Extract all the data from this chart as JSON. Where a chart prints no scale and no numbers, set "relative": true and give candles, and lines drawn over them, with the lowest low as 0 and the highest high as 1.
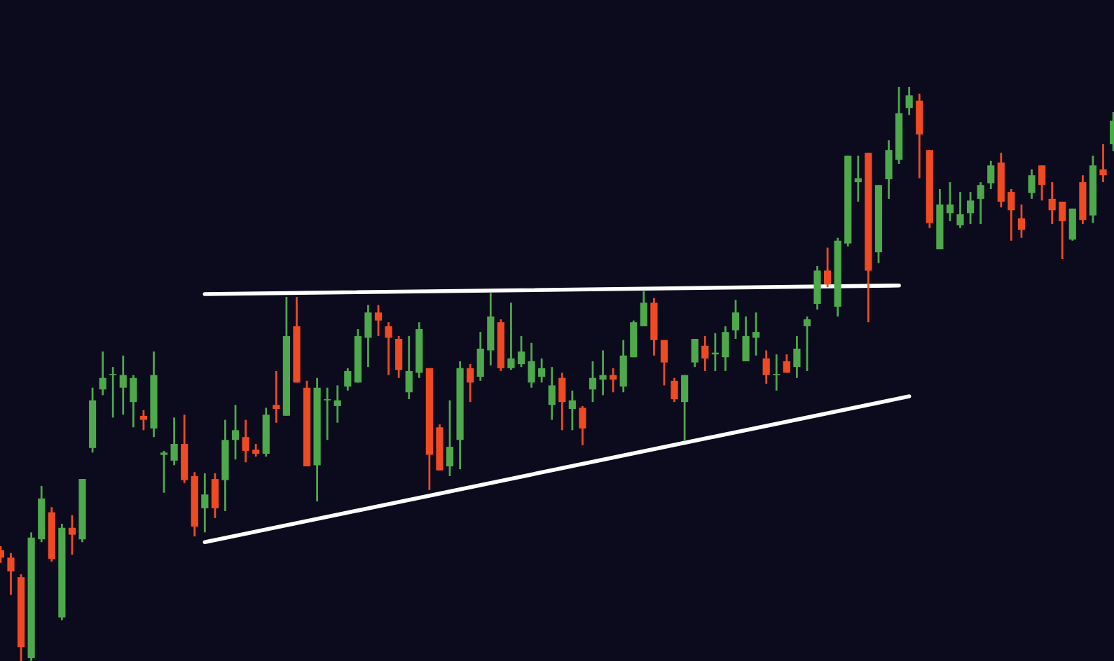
{
  "chart_data": {
    "type": "candlestick",
    "relative": true,
    "categories": [
      null,
      null,
      null,
      null,
      null,
      null,
      null,
      null,
      null,
      null,
      null,
      null,
      null,
      null,
      null,
      null,
      null,
      null,
      null,
      null,
      null,
      null,
      null,
      null,
      null,
      null,
      null,
      null,
      null,
      null,
      null,
      null,
      null,
      null,
      null,
      null,
      null,
      null,
      null,
      null,
      null,
      null,
      null,
      null,
      null,
      null,
      null,
      null,
      null,
      null,
      null,
      null,
      null,
      null,
      null,
      null,
      null,
      null,
      null,
      null,
      null,
      null,
      null,
      null,
      null,
      null,
      null,
      null,
      null,
      null,
      null,
      null,
      null,
      null,
      null,
      null,
      null,
      null,
      null,
      null,
      null,
      null,
      null,
      null,
      null,
      null,
      null,
      null,
      null,
      null,
      null,
      null,
      null,
      null,
      null,
      null,
      null,
      null,
      null,
      null,
      null,
      null,
      null,
      null,
      null,
      null,
      null,
      null,
      null,
      null
    ],
    "ohlc": [
      [
        0.193,
        0.2,
        0.171,
        0.18
      ],
      [
        0.18,
        0.188,
        0.115,
        0.156
      ],
      [
        0.146,
        0.151,
        0,
        0.024
      ],
      [
        0.005,
        0.224,
        0,
        0.215
      ],
      [
        0.212,
        0.305,
        0.207,
        0.283
      ],
      [
        0.259,
        0.268,
        0.173,
        0.178
      ],
      [
        0.076,
        0.239,
        0.071,
        0.232
      ],
      [
        0.232,
        0.254,
        0.185,
        0.22
      ],
      [
        0.212,
        0.317,
        0.207,
        0.317
      ],
      [
        0.371,
        0.476,
        0.363,
        0.454
      ],
      [
        0.473,
        0.539,
        0.463,
        0.493
      ],
      [
        0.498,
        0.512,
        0.424,
        0.5
      ],
      [
        0.476,
        0.532,
        0.429,
        0.498
      ],
      [
        0.451,
        0.498,
        0.407,
        0.493
      ],
      [
        0.427,
        0.437,
        0.402,
        0.42
      ],
      [
        0.405,
        0.539,
        0.39,
        0.498
      ],
      [
        0.359,
        0.366,
        0.293,
        0.363
      ],
      [
        0.349,
        0.424,
        0.341,
        0.378
      ],
      [
        0.378,
        0.429,
        0.31,
        0.315
      ],
      [
        0.322,
        0.329,
        0.217,
        0.234
      ],
      [
        0.266,
        0.327,
        0.224,
        0.29
      ],
      [
        0.317,
        0.327,
        0.249,
        0.266
      ],
      [
        0.315,
        0.42,
        0.261,
        0.385
      ],
      [
        0.385,
        0.446,
        0.351,
        0.402
      ],
      [
        0.39,
        0.42,
        0.346,
        0.366
      ],
      [
        0.368,
        0.378,
        0.356,
        0.361
      ],
      [
        0.361,
        0.441,
        0.356,
        0.429
      ],
      [
        0.446,
        0.505,
        0.415,
        0.439
      ],
      [
        0.427,
        0.634,
        0.427,
        0.566
      ],
      [
        0.583,
        0.634,
        0.485,
        0.485
      ],
      [
        0.476,
        0.488,
        0.339,
        0.339
      ],
      [
        0.341,
        0.493,
        0.278,
        0.476
      ],
      [
        0.454,
        0.476,
        0.385,
        0.456
      ],
      [
        0.444,
        0.48,
        0.415,
        0.454
      ],
      [
        0.478,
        0.51,
        0.471,
        0.505
      ],
      [
        0.485,
        0.578,
        0.485,
        0.566
      ],
      [
        0.563,
        0.62,
        0.512,
        0.607
      ],
      [
        0.607,
        0.62,
        0.566,
        0.593
      ],
      [
        0.583,
        0.59,
        0.498,
        0.563
      ],
      [
        0.561,
        0.566,
        0.493,
        0.507
      ],
      [
        0.468,
        0.566,
        0.456,
        0.505
      ],
      [
        0.502,
        0.59,
        0.493,
        0.578
      ],
      [
        0.51,
        0.51,
        0.298,
        0.359
      ],
      [
        0.407,
        0.412,
        0.332,
        0.332
      ],
      [
        0.339,
        0.454,
        0.322,
        0.373
      ],
      [
        0.385,
        0.522,
        0.334,
        0.51
      ],
      [
        0.51,
        0.517,
        0.451,
        0.485
      ],
      [
        0.495,
        0.573,
        0.488,
        0.544
      ],
      [
        0.541,
        0.641,
        0.515,
        0.6
      ],
      [
        0.59,
        0.595,
        0.505,
        0.51
      ],
      [
        0.51,
        0.624,
        0.507,
        0.527
      ],
      [
        0.517,
        0.566,
        0.512,
        0.539
      ],
      [
        0.485,
        0.554,
        0.476,
        0.522
      ],
      [
        0.495,
        0.527,
        0.485,
        0.51
      ],
      [
        0.446,
        0.512,
        0.42,
        0.48
      ],
      [
        0.493,
        0.502,
        0.402,
        0.451
      ],
      [
        0.439,
        0.471,
        0.402,
        0.454
      ],
      [
        0.441,
        0.444,
        0.376,
        0.405
      ],
      [
        0.473,
        0.522,
        0.451,
        0.493
      ],
      [
        0.49,
        0.541,
        0.463,
        0.498
      ],
      [
        0.498,
        0.51,
        0.468,
        0.49
      ],
      [
        0.478,
        0.559,
        0.468,
        0.532
      ],
      [
        0.529,
        0.593,
        0.529,
        0.59
      ],
      [
        0.583,
        0.644,
        0.583,
        0.624
      ],
      [
        0.624,
        0.632,
        0.532,
        0.559
      ],
      [
        0.559,
        0.559,
        0.48,
        0.52
      ],
      [
        0.488,
        0.493,
        0.451,
        0.456
      ],
      [
        0.451,
        0.498,
        0.383,
        0.498
      ],
      [
        0.52,
        0.561,
        0.512,
        0.561
      ],
      [
        0.549,
        0.566,
        0.505,
        0.527
      ],
      [
        0.534,
        0.571,
        0.505,
        0.537
      ],
      [
        0.529,
        0.583,
        0.505,
        0.573
      ],
      [
        0.576,
        0.629,
        0.561,
        0.607
      ],
      [
        0.522,
        0.6,
        0.522,
        0.566
      ],
      [
        0.563,
        0.607,
        0.532,
        0.573
      ],
      [
        0.527,
        0.541,
        0.483,
        0.498
      ],
      [
        0.498,
        0.534,
        0.471,
        0.5
      ],
      [
        0.522,
        0.534,
        0.502,
        0.502
      ],
      [
        0.512,
        0.566,
        0.493,
        0.544
      ],
      [
        0.583,
        0.6,
        0.505,
        0.595
      ],
      [
        0.622,
        0.688,
        0.612,
        0.68
      ],
      [
        0.68,
        0.72,
        0.651,
        0.656
      ],
      [
        0.617,
        0.737,
        0.6,
        0.732
      ],
      [
        0.727,
        0.88,
        0.722,
        0.88
      ],
      [
        0.834,
        0.88,
        0.8,
        0.841
      ],
      [
        0.885,
        0.885,
        0.59,
        0.68
      ],
      [
        0.712,
        0.829,
        0.693,
        0.829
      ],
      [
        0.839,
        0.907,
        0.805,
        0.89
      ],
      [
        0.873,
        1,
        0.866,
        0.954
      ],
      [
        0.963,
        1,
        0.951,
        0.985
      ],
      [
        0.976,
        0.988,
        0.841,
        0.917
      ],
      [
        0.89,
        0.89,
        0.754,
        0.763
      ],
      [
        0.717,
        0.822,
        0.717,
        0.795
      ],
      [
        0.78,
        0.834,
        0.766,
        0.795
      ],
      [
        0.759,
        0.817,
        0.754,
        0.778
      ],
      [
        0.78,
        0.817,
        0.761,
        0.802
      ],
      [
        0.805,
        0.834,
        0.761,
        0.829
      ],
      [
        0.832,
        0.871,
        0.822,
        0.863
      ],
      [
        0.868,
        0.885,
        0.79,
        0.8
      ],
      [
        0.817,
        0.822,
        0.732,
        0.785
      ],
      [
        0.771,
        0.795,
        0.737,
        0.751
      ],
      [
        0.815,
        0.856,
        0.805,
        0.846
      ],
      [
        0.863,
        0.863,
        0.802,
        0.829
      ],
      [
        0.805,
        0.834,
        0.761,
        0.785
      ],
      [
        0.8,
        0.8,
        0.7,
        0.766
      ],
      [
        0.734,
        0.788,
        0.732,
        0.788
      ],
      [
        0.834,
        0.846,
        0.761,
        0.768
      ],
      [
        0.776,
        0.88,
        0.763,
        0.863
      ],
      [
        0.856,
        0.9,
        0.834,
        0.846
      ],
      [
        0.9,
        0.956,
        0.888,
        0.941
      ]
    ],
    "colors": [
      "#f04a23",
      "#f04a23",
      "#f04a23",
      "#4ea84c",
      "#4ea84c",
      "#f04a23",
      "#4ea84c",
      "#f04a23",
      "#4ea84c",
      "#4ea84c",
      "#4ea84c",
      "#4ea84c",
      "#4ea84c",
      "#4ea84c",
      "#f04a23",
      "#4ea84c",
      "#4ea84c",
      "#4ea84c",
      "#f04a23",
      "#f04a23",
      "#4ea84c",
      "#f04a23",
      "#4ea84c",
      "#4ea84c",
      "#f04a23",
      "#f04a23",
      "#4ea84c",
      "#f04a23",
      "#4ea84c",
      "#f04a23",
      "#f04a23",
      "#4ea84c",
      "#4ea84c",
      "#4ea84c",
      "#4ea84c",
      "#4ea84c",
      "#4ea84c",
      "#f04a23",
      "#f04a23",
      "#f04a23",
      "#4ea84c",
      "#4ea84c",
      "#f04a23",
      "#f04a23",
      "#4ea84c",
      "#4ea84c",
      "#f04a23",
      "#4ea84c",
      "#4ea84c",
      "#f04a23",
      "#4ea84c",
      "#4ea84c",
      "#4ea84c",
      "#4ea84c",
      "#4ea84c",
      "#f04a23",
      "#4ea84c",
      "#f04a23",
      "#4ea84c",
      "#4ea84c",
      "#f04a23",
      "#4ea84c",
      "#4ea84c",
      "#4ea84c",
      "#f04a23",
      "#f04a23",
      "#f04a23",
      "#4ea84c",
      "#4ea84c",
      "#f04a23",
      "#4ea84c",
      "#4ea84c",
      "#4ea84c",
      "#4ea84c",
      "#4ea84c",
      "#f04a23",
      "#4ea84c",
      "#f04a23",
      "#4ea84c",
      "#4ea84c",
      "#4ea84c",
      "#f04a23",
      "#4ea84c",
      "#4ea84c",
      "#4ea84c",
      "#f04a23",
      "#4ea84c",
      "#4ea84c",
      "#4ea84c",
      "#4ea84c",
      "#f04a23",
      "#f04a23",
      "#4ea84c",
      "#4ea84c",
      "#4ea84c",
      "#4ea84c",
      "#4ea84c",
      "#4ea84c",
      "#f04a23",
      "#f04a23",
      "#f04a23",
      "#4ea84c",
      "#f04a23",
      "#f04a23",
      "#f04a23",
      "#4ea84c",
      "#f04a23",
      "#4ea84c",
      "#f04a23",
      "#4ea84c"
    ],
    "series": [
      {
        "type": "line",
        "color": "#ffffff",
        "values": [
          null,
          null,
          null,
          null,
          null,
          null,
          null,
          null,
          null,
          null,
          null,
          null,
          null,
          null,
          null,
          null,
          null,
          null,
          null,
          null,
          0.639,
          null,
          null,
          null,
          null,
          null,
          null,
          null,
          null,
          null,
          null,
          null,
          null,
          null,
          null,
          null,
          null,
          null,
          null,
          null,
          null,
          null,
          null,
          null,
          null,
          null,
          null,
          null,
          null,
          null,
          null,
          null,
          null,
          null,
          null,
          null,
          null,
          null,
          null,
          null,
          null,
          null,
          null,
          null,
          null,
          null,
          null,
          null,
          null,
          null,
          null,
          null,
          null,
          null,
          null,
          null,
          null,
          null,
          null,
          null,
          null,
          null,
          null,
          null,
          null,
          null,
          null,
          null,
          0.654,
          null,
          null,
          null,
          null,
          null,
          null,
          null,
          null,
          null,
          null,
          null,
          null,
          null,
          null,
          null,
          null,
          null,
          null,
          null,
          null,
          null
        ]
      },
      {
        "type": "line",
        "color": "#ffffff",
        "values": [
          null,
          null,
          null,
          null,
          null,
          null,
          null,
          null,
          null,
          null,
          null,
          null,
          null,
          null,
          null,
          null,
          null,
          null,
          null,
          null,
          0.207,
          null,
          null,
          null,
          null,
          null,
          null,
          null,
          null,
          null,
          null,
          null,
          null,
          null,
          null,
          null,
          null,
          null,
          null,
          null,
          null,
          null,
          null,
          null,
          null,
          null,
          null,
          null,
          null,
          null,
          null,
          null,
          null,
          null,
          null,
          null,
          null,
          null,
          null,
          null,
          null,
          null,
          null,
          null,
          null,
          null,
          null,
          null,
          null,
          null,
          null,
          null,
          null,
          null,
          null,
          null,
          null,
          null,
          null,
          null,
          null,
          null,
          null,
          null,
          null,
          null,
          null,
          null,
          null,
          0.461,
          null,
          null,
          null,
          null,
          null,
          null,
          null,
          null,
          null,
          null,
          null,
          null,
          null,
          null,
          null,
          null,
          null,
          null,
          null,
          null
        ]
      }
    ]
  }
}
